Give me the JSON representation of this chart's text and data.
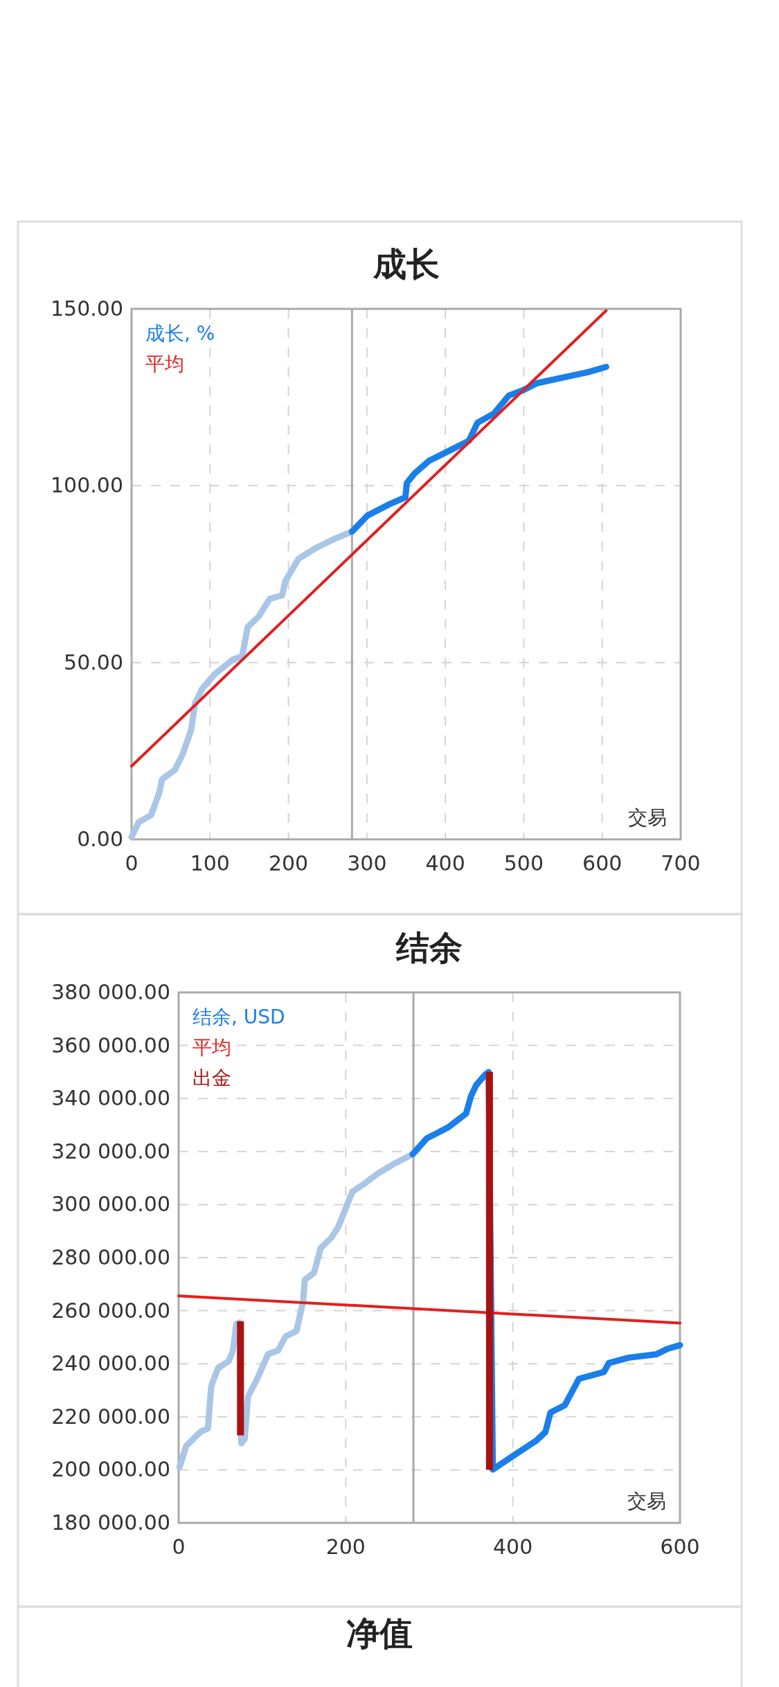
{
  "chart_data": [
    {
      "type": "line",
      "title": "成长",
      "xlabel": "交易",
      "xlim": [
        0,
        700
      ],
      "ylim": [
        0,
        150
      ],
      "xticks": [
        0,
        100,
        200,
        300,
        400,
        500,
        600,
        700
      ],
      "yticks": [
        {
          "value": 0,
          "label": "0.00"
        },
        {
          "value": 50,
          "label": "50.00"
        },
        {
          "value": 100,
          "label": "100.00"
        },
        {
          "value": 150,
          "label": "150.00"
        }
      ],
      "grid": true,
      "legend": "top left",
      "line_style": "solid",
      "ref_lines": [
        {
          "axis": "x",
          "value": 281,
          "color": "#aaaaaa"
        }
      ],
      "series": [
        {
          "color": "#a9c6e6",
          "x": [
            0,
            9,
            25,
            35,
            39,
            55,
            65,
            76,
            81,
            90,
            106,
            129,
            141,
            148,
            162,
            176,
            192,
            196,
            213,
            236,
            259,
            281
          ],
          "values": [
            0.7,
            4.8,
            6.9,
            13,
            17,
            19.6,
            24,
            31,
            38.5,
            42.6,
            46.7,
            50.8,
            51.8,
            60,
            63,
            68,
            69,
            73,
            79.4,
            82.5,
            85,
            87
          ]
        },
        {
          "name": "成长, %",
          "color": "#1a7fe8",
          "x": [
            281,
            301,
            328,
            349,
            351,
            361,
            379,
            397,
            430,
            441,
            462,
            481,
            499,
            517,
            550,
            582,
            605
          ],
          "values": [
            87,
            91.6,
            94.7,
            96.7,
            100.8,
            103.5,
            107,
            109,
            112.7,
            117.8,
            120.4,
            125.5,
            127,
            129,
            130.6,
            132.1,
            133.6
          ]
        },
        {
          "name": "平均",
          "color": "#e02020",
          "x": [
            0,
            605
          ],
          "values": [
            20.7,
            149.5
          ]
        }
      ]
    },
    {
      "type": "line",
      "title": "结余",
      "xlabel": "交易",
      "xlim": [
        0,
        600
      ],
      "ylim": [
        180000,
        380000
      ],
      "xticks": [
        0,
        200,
        400,
        600
      ],
      "yticks": [
        {
          "value": 180000,
          "label": "180 000.00"
        },
        {
          "value": 200000,
          "label": "200 000.00"
        },
        {
          "value": 220000,
          "label": "220 000.00"
        },
        {
          "value": 240000,
          "label": "240 000.00"
        },
        {
          "value": 260000,
          "label": "260 000.00"
        },
        {
          "value": 280000,
          "label": "280 000.00"
        },
        {
          "value": 300000,
          "label": "300 000.00"
        },
        {
          "value": 320000,
          "label": "320 000.00"
        },
        {
          "value": 340000,
          "label": "340 000.00"
        },
        {
          "value": 360000,
          "label": "360 000.00"
        },
        {
          "value": 380000,
          "label": "380 000.00"
        }
      ],
      "grid": true,
      "legend": "top left",
      "line_style": "solid",
      "ref_lines": [
        {
          "axis": "x",
          "value": 281,
          "color": "#aaaaaa"
        }
      ],
      "series": [
        {
          "color": "#a9c6e6",
          "x": [
            1,
            9,
            26,
            35,
            39,
            47,
            60,
            65,
            69,
            73,
            75,
            79,
            83,
            94,
            107,
            119,
            128,
            141,
            149,
            151,
            162,
            170,
            183,
            191,
            208,
            221,
            238,
            259,
            280
          ],
          "values": [
            201000,
            209000,
            214300,
            215600,
            231600,
            238300,
            241000,
            245000,
            255000,
            255600,
            210000,
            211600,
            227600,
            234300,
            243600,
            245000,
            250300,
            252300,
            263600,
            271600,
            274300,
            283600,
            287600,
            291600,
            304900,
            307600,
            311600,
            315600,
            319000
          ]
        },
        {
          "name": "结余, USD",
          "color": "#1a7fe8",
          "x": [
            280,
            297,
            322,
            344,
            350,
            356,
            367,
            371,
            376,
            399,
            428,
            439,
            445,
            462,
            479,
            509,
            515,
            539,
            572,
            585,
            600
          ],
          "values": [
            319000,
            325000,
            329000,
            334300,
            341000,
            345000,
            349000,
            350000,
            200100,
            205000,
            211000,
            214300,
            221600,
            224300,
            234300,
            236900,
            240300,
            242300,
            243600,
            245600,
            247000
          ]
        },
        {
          "name": "平均",
          "color": "#e02020",
          "x": [
            0,
            600
          ],
          "values": [
            265600,
            255300
          ]
        },
        {
          "name": "出金",
          "type": "bar",
          "color": "#aa1111",
          "x": [
            74,
            372
          ],
          "base": [
            256000,
            350000
          ],
          "values": [
            -43000,
            -150000
          ]
        }
      ]
    },
    {
      "type": "other",
      "title": "净值"
    }
  ]
}
